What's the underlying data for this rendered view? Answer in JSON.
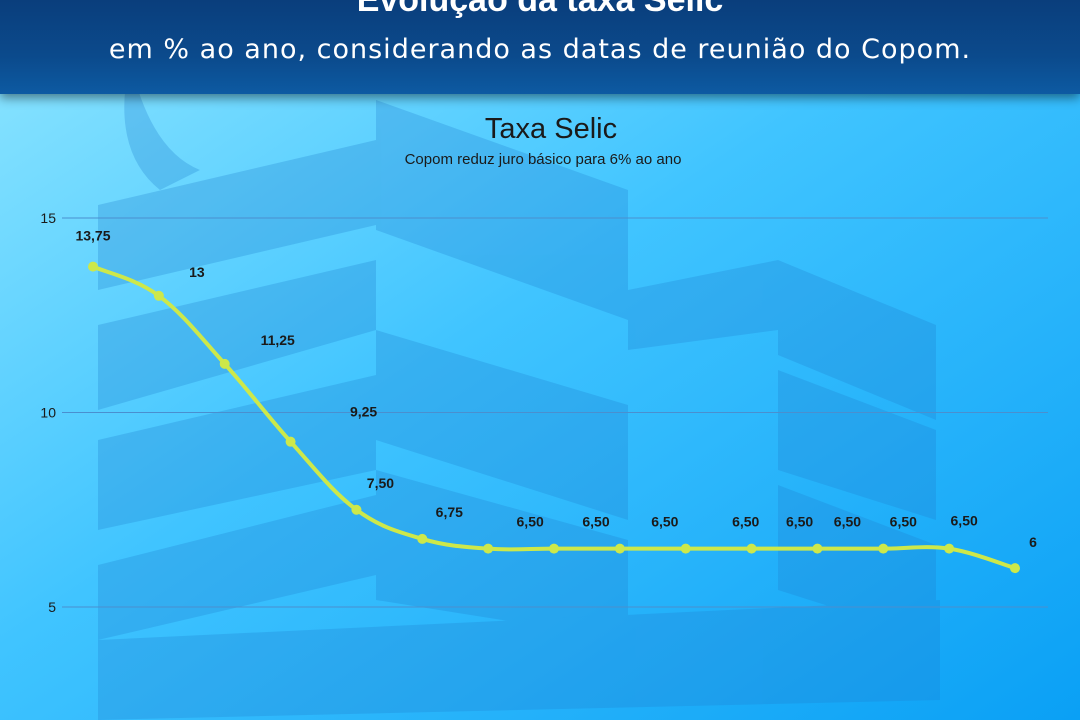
{
  "header": {
    "title_partial": "Evolução da taxa Selic",
    "subtitle": "em % ao ano, considerando as datas de reunião do Copom."
  },
  "colors": {
    "line": "#cde84a",
    "grid": "#4a8fcf",
    "header_bg": "#0b4a8c"
  },
  "chart_data": {
    "type": "line",
    "title": "Taxa Selic",
    "subtitle": "Copom reduz juro básico para 6% ao ano",
    "y_ticks": [
      "15",
      "10",
      "5"
    ],
    "ylim": [
      2.5,
      16
    ],
    "grid": true,
    "values": [
      13.75,
      13,
      11.25,
      9.25,
      7.5,
      6.75,
      6.5,
      6.5,
      6.5,
      6.5,
      6.5,
      6.5,
      6.5,
      6.5,
      6
    ],
    "data_labels": [
      "13,75",
      "13",
      "11,25",
      "9,25",
      "7,50",
      "6,75",
      "6,50",
      "6,50",
      "6,50",
      "6,50",
      "6,50",
      "6,50",
      "6,50",
      "6,50",
      "6"
    ]
  }
}
